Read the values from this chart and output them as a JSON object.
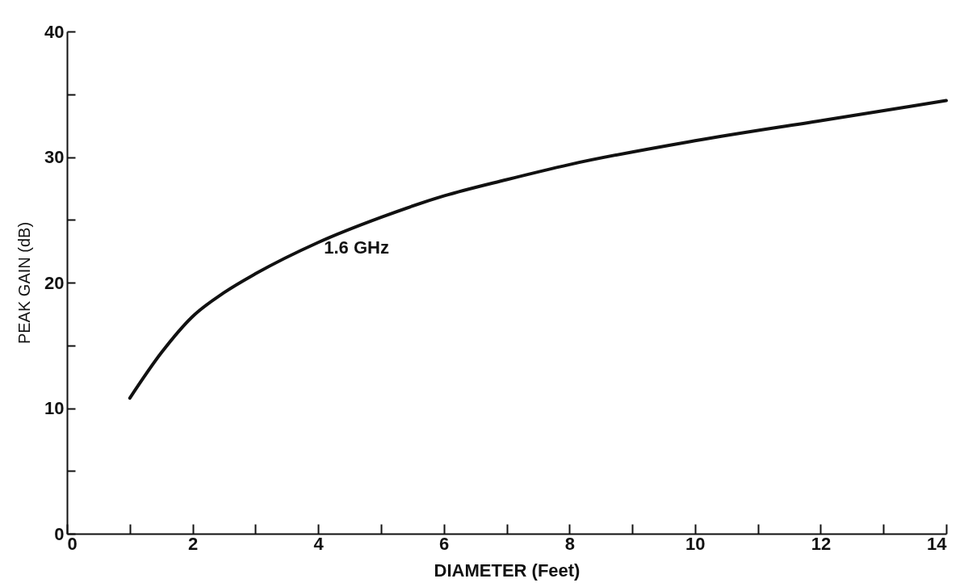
{
  "chart_data": {
    "type": "line",
    "xlabel": "DIAMETER (Feet)",
    "ylabel": "PEAK GAIN (dB)",
    "x": [
      1,
      1.5,
      2,
      2.5,
      3,
      4,
      5,
      6,
      7,
      8,
      10,
      12,
      14
    ],
    "series": [
      {
        "name": "1.6 GHz",
        "color": "#111111",
        "values": [
          10.8,
          14.4,
          17.3,
          19.2,
          20.7,
          23.2,
          25.2,
          26.9,
          28.2,
          29.4,
          31.3,
          32.9,
          34.5
        ]
      }
    ],
    "xlim": [
      0,
      14
    ],
    "ylim": [
      0,
      40
    ],
    "xticks": [
      0,
      {
        "value": 1,
        "label": null
      },
      2,
      {
        "value": 3,
        "label": null
      },
      4,
      {
        "value": 5,
        "label": null
      },
      6,
      {
        "value": 7,
        "label": null
      },
      8,
      {
        "value": 9,
        "label": null
      },
      10,
      {
        "value": 11,
        "label": null
      },
      12,
      {
        "value": 13,
        "label": null
      },
      14
    ],
    "yticks": [
      0,
      {
        "value": 5,
        "label": null
      },
      10,
      {
        "value": 15,
        "label": null
      },
      20,
      {
        "value": 25,
        "label": null
      },
      30,
      {
        "value": 35,
        "label": null
      },
      40
    ],
    "grid": false,
    "marker": "none",
    "line_style": "solid"
  }
}
